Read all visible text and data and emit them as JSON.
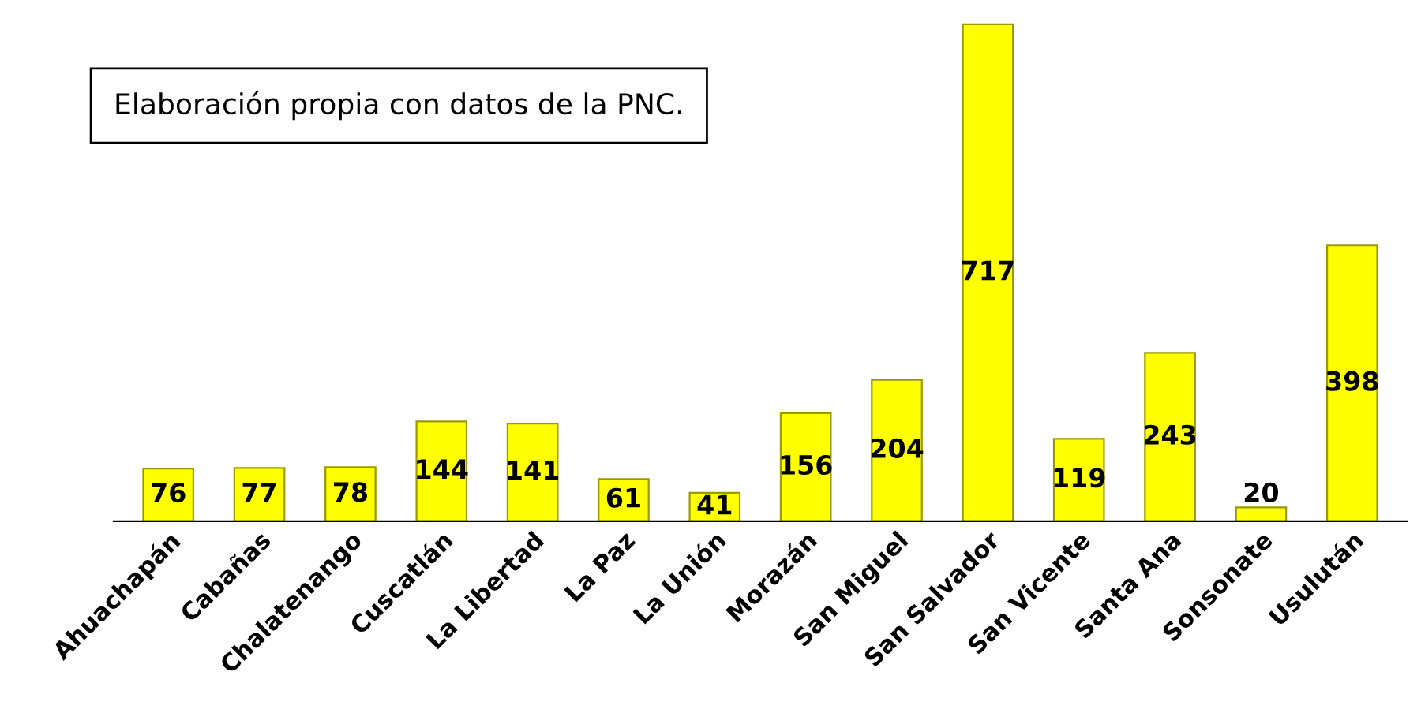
{
  "chart_data": {
    "type": "bar",
    "categories": [
      "Ahuachapán",
      "Cabañas",
      "Chalatenango",
      "Cuscatlán",
      "La Libertad",
      "La Paz",
      "La Unión",
      "Morazán",
      "San Miguel",
      "San Salvador",
      "San Vicente",
      "Santa Ana",
      "Sonsonate",
      "Usulután"
    ],
    "values": [
      76,
      77,
      78,
      144,
      141,
      61,
      41,
      156,
      204,
      717,
      119,
      243,
      20,
      398
    ],
    "color": "#ffff00",
    "data_labels": true,
    "annotations": [
      "Elaboración propia con datos de la PNC."
    ],
    "grid": false,
    "legend": false
  }
}
